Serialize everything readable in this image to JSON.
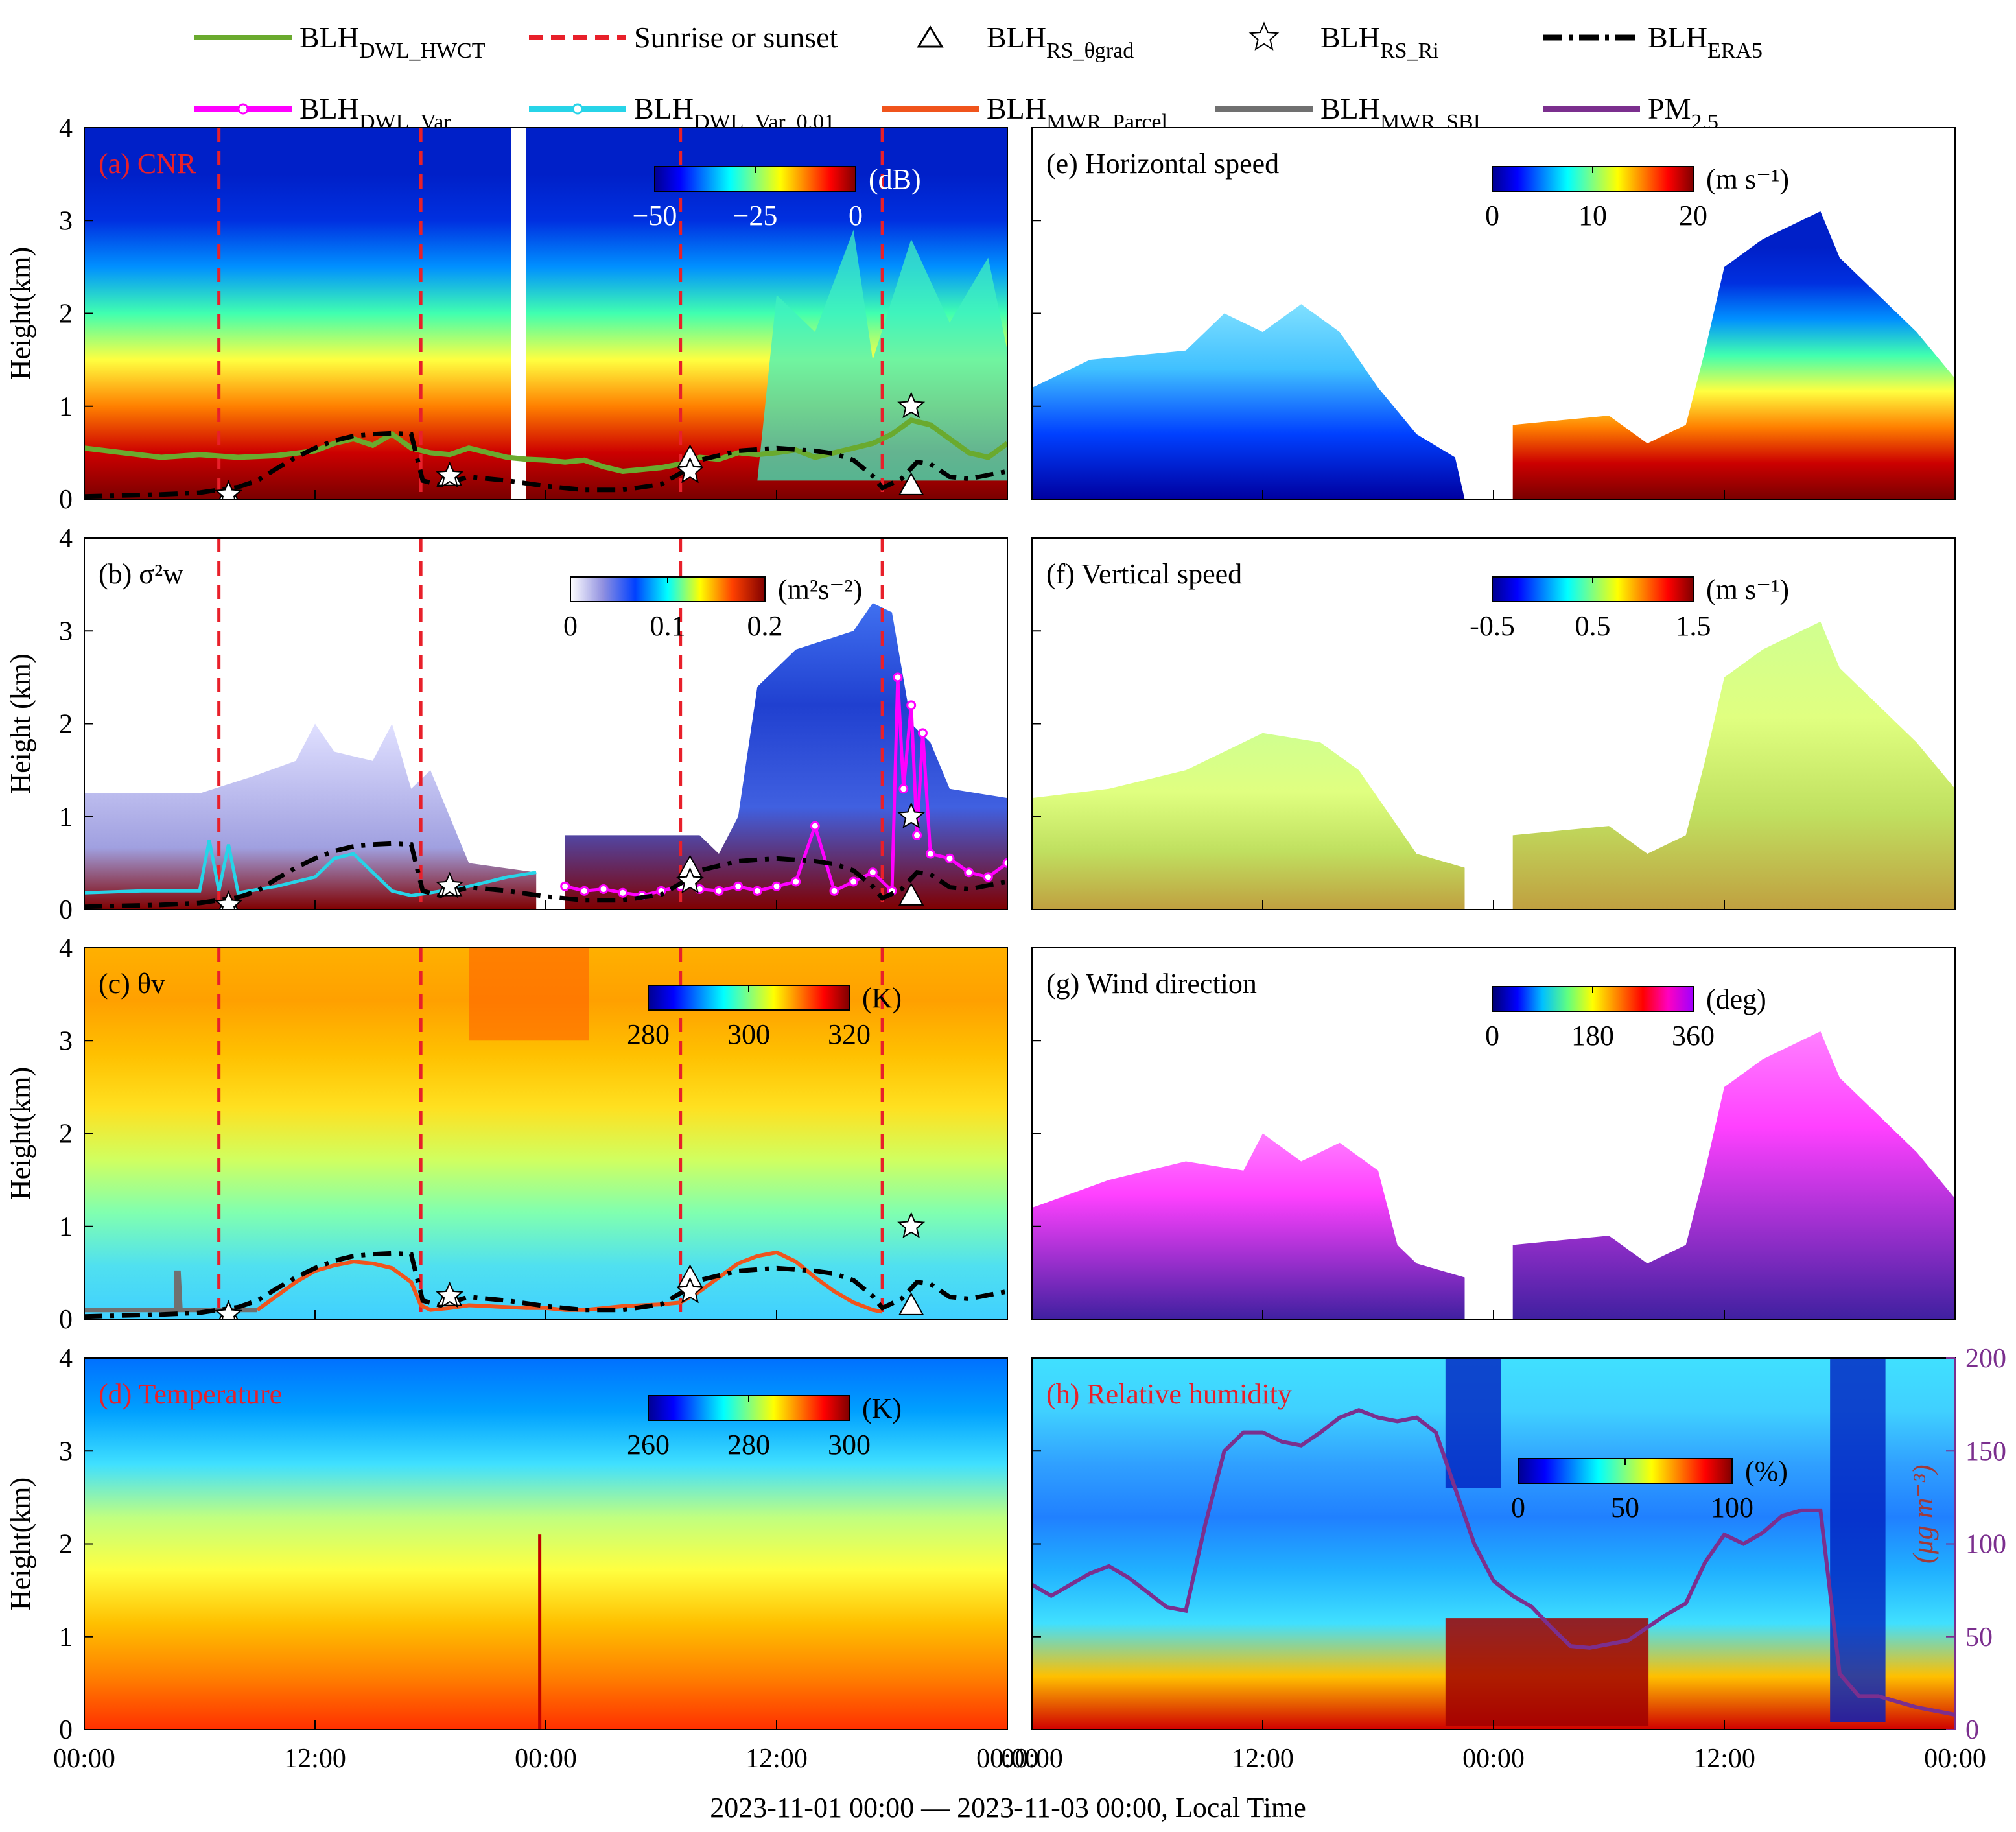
{
  "legend": [
    {
      "base": "BLH",
      "sub": "DWL_HWCT",
      "style": "hwct",
      "color": "#6aaa2e"
    },
    {
      "base": "Sunrise or sunset",
      "sub": "",
      "style": "sun",
      "color": "#e8202a"
    },
    {
      "base": "BLH",
      "sub": "RS_θgrad",
      "style": "triangle",
      "color": "#000000"
    },
    {
      "base": "BLH",
      "sub": "RS_Ri",
      "style": "star",
      "color": "#000000"
    },
    {
      "base": "BLH",
      "sub": "ERA5",
      "style": "era5",
      "color": "#000000"
    },
    {
      "base": "BLH",
      "sub": "DWL_Var",
      "style": "var",
      "color": "#ff00ff"
    },
    {
      "base": "BLH",
      "sub": "DWL_Var_0.01",
      "style": "var001",
      "color": "#27d4e8"
    },
    {
      "base": "BLH",
      "sub": "MWR_Parcel",
      "style": "parcel",
      "color": "#f0541c"
    },
    {
      "base": "BLH",
      "sub": "MWR_SBI",
      "style": "sbi",
      "color": "#707070"
    },
    {
      "base": "PM",
      "sub": "2.5",
      "style": "pm",
      "color": "#7b2f8e"
    }
  ],
  "x_ticks": [
    "00:00",
    "12:00",
    "00:00",
    "12:00",
    "00:00"
  ],
  "x_label": "2023-11-01 00:00 — 2023-11-03 00:00, Local Time",
  "y_ticks": [
    "0",
    "1",
    "2",
    "3",
    "4"
  ],
  "right_y_ticks": [
    "0",
    "50",
    "100",
    "150",
    "200"
  ],
  "right_y_label": "(μg m⁻³)",
  "panels": [
    {
      "id": "a",
      "title": "(a) CNR",
      "title_color": "#e8202a",
      "ylabel": "Height(km)",
      "cbar": {
        "ticks": [
          "−50",
          "−25",
          "0"
        ],
        "unit": "(dB)",
        "scheme": "jet",
        "white_text": true
      }
    },
    {
      "id": "b",
      "title": "(b) σ²w",
      "title_color": "#000000",
      "ylabel": "Height (km)",
      "cbar": {
        "ticks": [
          "0",
          "0.1",
          "0.2"
        ],
        "unit": "(m²s⁻²)",
        "scheme": "jetwhite",
        "white_text": false
      }
    },
    {
      "id": "c",
      "title": "(c) θv",
      "title_color": "#000000",
      "ylabel": "Height(km)",
      "cbar": {
        "ticks": [
          "280",
          "300",
          "320"
        ],
        "unit": "(K)",
        "scheme": "jet",
        "white_text": false
      }
    },
    {
      "id": "d",
      "title": "(d) Temperature",
      "title_color": "#e8202a",
      "ylabel": "Height(km)",
      "cbar": {
        "ticks": [
          "260",
          "280",
          "300"
        ],
        "unit": "(K)",
        "scheme": "jet",
        "white_text": false
      }
    },
    {
      "id": "e",
      "title": "(e) Horizontal speed",
      "title_color": "#000000",
      "ylabel": "",
      "cbar": {
        "ticks": [
          "0",
          "10",
          "20"
        ],
        "unit": "(m s⁻¹)",
        "scheme": "jet",
        "white_text": false
      }
    },
    {
      "id": "f",
      "title": "(f) Vertical speed",
      "title_color": "#000000",
      "ylabel": "",
      "cbar": {
        "ticks": [
          "-0.5",
          "0.5",
          "1.5"
        ],
        "unit": "(m s⁻¹)",
        "scheme": "jet",
        "white_text": false
      }
    },
    {
      "id": "g",
      "title": "(g) Wind direction",
      "title_color": "#000000",
      "ylabel": "",
      "cbar": {
        "ticks": [
          "0",
          "180",
          "360"
        ],
        "unit": "(deg)",
        "scheme": "hsv",
        "white_text": false
      }
    },
    {
      "id": "h",
      "title": "(h) Relative humidity",
      "title_color": "#e8202a",
      "ylabel": "",
      "cbar": {
        "ticks": [
          "0",
          "50",
          "100"
        ],
        "unit": "(%)",
        "scheme": "jet",
        "white_text": false
      }
    }
  ],
  "chart_data": {
    "type": "heatmap",
    "x_unit": "hours since 2023-11-01 00:00",
    "xlim": [
      0,
      48
    ],
    "ylim": [
      0,
      4
    ],
    "sunrise_sunset_h": [
      7,
      17.5,
      31,
      41.5
    ],
    "era5_blh": {
      "x": [
        0,
        4,
        6,
        7,
        8,
        9,
        10,
        11,
        12,
        13,
        14,
        15,
        16,
        17,
        17.6,
        18.5,
        20,
        22,
        24,
        26,
        28,
        30,
        31,
        32,
        34,
        36,
        38,
        39,
        40,
        41,
        41.5,
        42.5,
        43.3,
        44,
        45,
        46,
        47,
        48
      ],
      "y": [
        0.03,
        0.05,
        0.07,
        0.1,
        0.13,
        0.2,
        0.33,
        0.45,
        0.55,
        0.63,
        0.68,
        0.7,
        0.71,
        0.7,
        0.2,
        0.15,
        0.24,
        0.2,
        0.14,
        0.1,
        0.1,
        0.16,
        0.28,
        0.42,
        0.52,
        0.55,
        0.52,
        0.49,
        0.42,
        0.25,
        0.12,
        0.22,
        0.4,
        0.38,
        0.24,
        0.22,
        0.26,
        0.3
      ]
    },
    "hwct_blh": {
      "x": [
        0,
        2,
        4,
        6,
        8,
        10,
        12,
        13,
        14,
        15,
        16,
        17,
        18,
        19,
        20,
        21,
        22,
        23,
        24,
        25,
        26,
        27,
        28,
        29,
        30,
        31,
        32,
        33,
        34,
        35,
        36,
        37,
        38,
        39,
        40,
        41,
        42,
        43,
        44,
        45,
        46,
        47,
        48
      ],
      "y": [
        0.55,
        0.5,
        0.45,
        0.48,
        0.45,
        0.47,
        0.52,
        0.6,
        0.65,
        0.58,
        0.7,
        0.55,
        0.5,
        0.48,
        0.55,
        0.5,
        0.45,
        0.43,
        0.42,
        0.4,
        0.42,
        0.35,
        0.3,
        0.32,
        0.34,
        0.38,
        0.45,
        0.43,
        0.5,
        0.48,
        0.5,
        0.53,
        0.45,
        0.5,
        0.55,
        0.6,
        0.7,
        0.85,
        0.8,
        0.65,
        0.5,
        0.45,
        0.6
      ]
    },
    "mwr_parcel_blh": {
      "x": [
        9,
        10,
        11,
        12,
        13,
        14,
        15,
        16,
        17,
        17.5,
        18,
        19,
        20,
        21,
        22,
        23,
        24,
        25,
        26,
        27,
        28,
        29,
        30,
        31,
        32,
        33,
        34,
        35,
        36,
        37,
        38,
        39,
        40,
        41,
        41.5
      ],
      "y": [
        0.1,
        0.25,
        0.4,
        0.52,
        0.58,
        0.62,
        0.6,
        0.55,
        0.4,
        0.15,
        0.1,
        0.12,
        0.15,
        0.14,
        0.13,
        0.12,
        0.12,
        0.1,
        0.1,
        0.12,
        0.14,
        0.15,
        0.16,
        0.18,
        0.3,
        0.45,
        0.6,
        0.68,
        0.72,
        0.62,
        0.45,
        0.3,
        0.18,
        0.1,
        0.08
      ]
    },
    "var_001_blh": {
      "x": [
        0,
        3,
        6,
        6.5,
        7,
        7.5,
        8,
        10,
        12,
        13,
        14,
        15,
        16,
        17,
        18,
        20,
        22,
        23.5
      ],
      "y": [
        0.18,
        0.2,
        0.2,
        0.75,
        0.2,
        0.7,
        0.18,
        0.25,
        0.35,
        0.55,
        0.6,
        0.4,
        0.2,
        0.15,
        0.18,
        0.25,
        0.35,
        0.4
      ]
    },
    "var_blh": {
      "x": [
        25,
        26,
        27,
        28,
        29,
        30,
        31,
        32,
        33,
        34,
        35,
        36,
        37,
        38,
        39,
        40,
        41,
        42,
        42.3,
        42.6,
        43,
        43.3,
        43.6,
        44,
        45,
        46,
        47,
        48
      ],
      "y": [
        0.25,
        0.2,
        0.22,
        0.18,
        0.15,
        0.2,
        0.25,
        0.22,
        0.2,
        0.25,
        0.2,
        0.25,
        0.3,
        0.9,
        0.2,
        0.3,
        0.4,
        0.2,
        2.5,
        1.3,
        2.2,
        0.8,
        1.9,
        0.6,
        0.55,
        0.4,
        0.35,
        0.5
      ]
    },
    "rs_theta_grad_blh": {
      "x": [
        7.5,
        19,
        31.5,
        43
      ],
      "y": [
        0.05,
        0.25,
        0.45,
        0.15
      ]
    },
    "rs_ri_blh": {
      "x": [
        7.5,
        19,
        31.5,
        43
      ],
      "y": [
        0.05,
        0.25,
        0.3,
        1.0
      ]
    },
    "pm25": {
      "ylim": [
        0,
        200
      ],
      "x": [
        0,
        1,
        2,
        3,
        4,
        5,
        6,
        7,
        8,
        9,
        10,
        11,
        12,
        13,
        14,
        15,
        16,
        17,
        18,
        19,
        20,
        21,
        22,
        23,
        24,
        25,
        26,
        27,
        28,
        29,
        30,
        31,
        32,
        33,
        34,
        35,
        36,
        37,
        38,
        39,
        40,
        41,
        42,
        43,
        44,
        45,
        46,
        47,
        48
      ],
      "y": [
        78,
        72,
        78,
        84,
        88,
        82,
        74,
        66,
        64,
        110,
        150,
        160,
        160,
        155,
        153,
        160,
        168,
        172,
        168,
        166,
        168,
        160,
        130,
        100,
        80,
        72,
        66,
        55,
        45,
        44,
        46,
        48,
        55,
        62,
        68,
        90,
        105,
        100,
        106,
        115,
        118,
        118,
        30,
        18,
        18,
        15,
        12,
        10,
        8
      ]
    },
    "colorbars": {
      "a": {
        "label": "CNR",
        "unit": "dB",
        "range": [
          -50,
          0
        ]
      },
      "b": {
        "label": "σ²w",
        "unit": "m²s⁻²",
        "range": [
          0,
          0.2
        ]
      },
      "c": {
        "label": "θv",
        "unit": "K",
        "range": [
          280,
          320
        ]
      },
      "d": {
        "label": "Temperature",
        "unit": "K",
        "range": [
          260,
          300
        ]
      },
      "e": {
        "label": "Horizontal speed",
        "unit": "m s⁻¹",
        "range": [
          0,
          20
        ]
      },
      "f": {
        "label": "Vertical speed",
        "unit": "m s⁻¹",
        "range": [
          -0.5,
          1.5
        ]
      },
      "g": {
        "label": "Wind direction",
        "unit": "deg",
        "range": [
          0,
          360
        ]
      },
      "h": {
        "label": "Relative humidity",
        "unit": "%",
        "range": [
          0,
          100
        ]
      }
    }
  }
}
